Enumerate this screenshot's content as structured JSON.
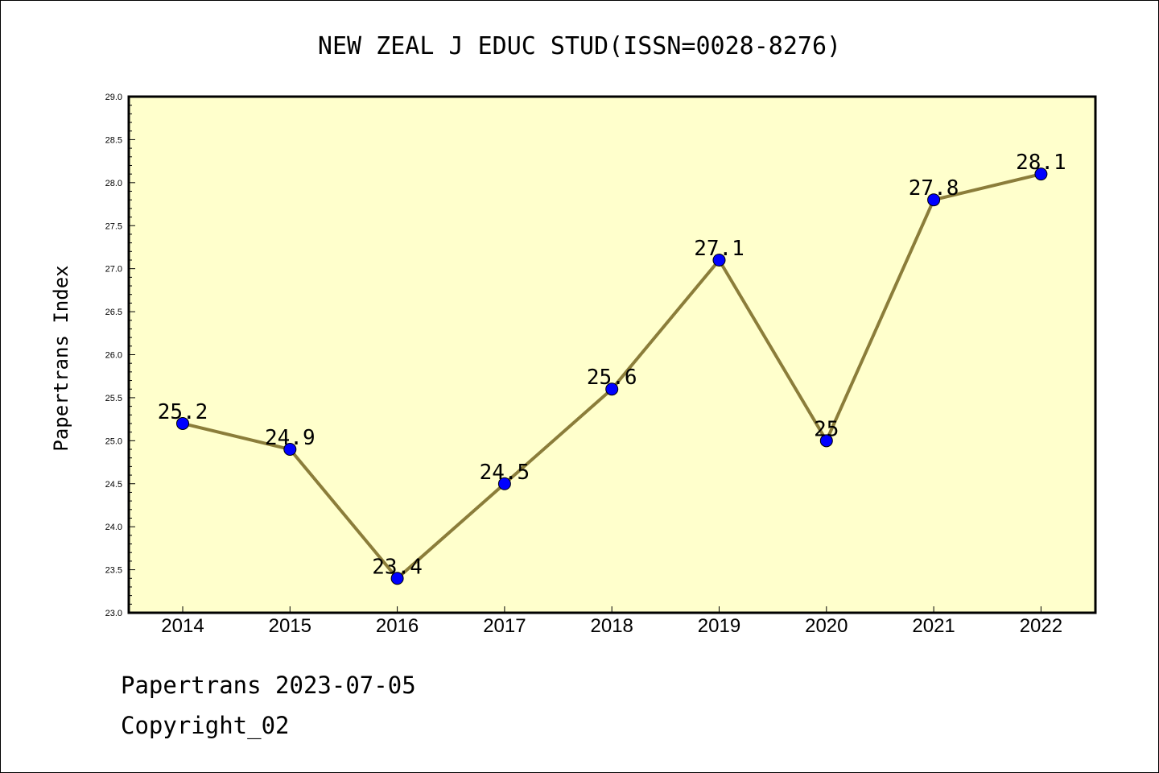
{
  "footer": {
    "line1": "Papertrans 2023-07-05",
    "line2": "Copyright_02"
  },
  "chart_data": {
    "type": "line",
    "title": "NEW ZEAL J EDUC STUD(ISSN=0028-8276)",
    "xlabel": "",
    "ylabel": "Papertrans Index",
    "categories": [
      "2014",
      "2015",
      "2016",
      "2017",
      "2018",
      "2019",
      "2020",
      "2021",
      "2022"
    ],
    "values": [
      25.2,
      24.9,
      23.4,
      24.5,
      25.6,
      27.1,
      25,
      27.8,
      28.1
    ],
    "data_labels": [
      "25.2",
      "24.9",
      "23.4",
      "24.5",
      "25.6",
      "27.1",
      "25",
      "27.8",
      "28.1"
    ],
    "ylim": [
      23.0,
      29.0
    ],
    "yticks": [
      "23.0",
      "23.5",
      "24.0",
      "24.5",
      "25.0",
      "25.5",
      "26.0",
      "26.5",
      "27.0",
      "27.5",
      "28.0",
      "28.5",
      "29.0"
    ],
    "grid": false,
    "legend": "none",
    "colors": {
      "plot_background": "#ffffcc",
      "line": "#8b7d3a",
      "marker": "#0000ff"
    }
  }
}
